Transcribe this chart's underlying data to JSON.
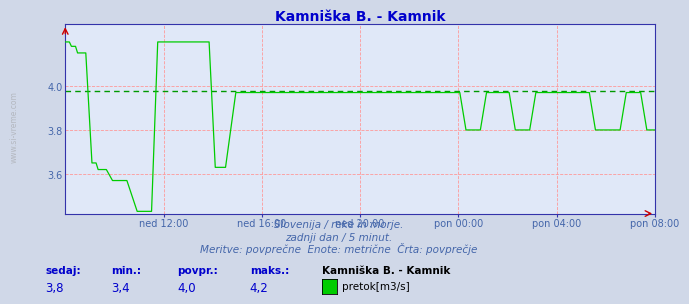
{
  "title": "Kamniška B. - Kamnik",
  "title_color": "#0000cc",
  "bg_color": "#d0d8e8",
  "plot_bg_color": "#e0e8f8",
  "line_color": "#00cc00",
  "avg_line_color": "#009900",
  "grid_color": "#ff9999",
  "spine_color": "#3333aa",
  "xticklabels": [
    "ned 12:00",
    "ned 16:00",
    "ned 20:00",
    "pon 00:00",
    "pon 04:00",
    "pon 08:00"
  ],
  "yticks": [
    3.6,
    3.8,
    4.0
  ],
  "ylim": [
    3.42,
    4.28
  ],
  "tick_color": "#4466aa",
  "watermark": "www.si-vreme.com",
  "subtitle1": "Slovenija / reke in morje.",
  "subtitle2": "zadnji dan / 5 minut.",
  "subtitle3": "Meritve: povprečne  Enote: metrične  Črta: povprečje",
  "footer_color": "#4466aa",
  "sedaj_label": "sedaj:",
  "min_label": "min.:",
  "povpr_label": "povpr.:",
  "maks_label": "maks.:",
  "station_label": "Kamniška B. - Kamnik",
  "legend_label": "pretok[m3/s]",
  "sedaj_val": "3,8",
  "min_val": "3,4",
  "povpr_val": "4,0",
  "maks_val": "4,2",
  "avg_value": 3.975,
  "n_points": 288
}
